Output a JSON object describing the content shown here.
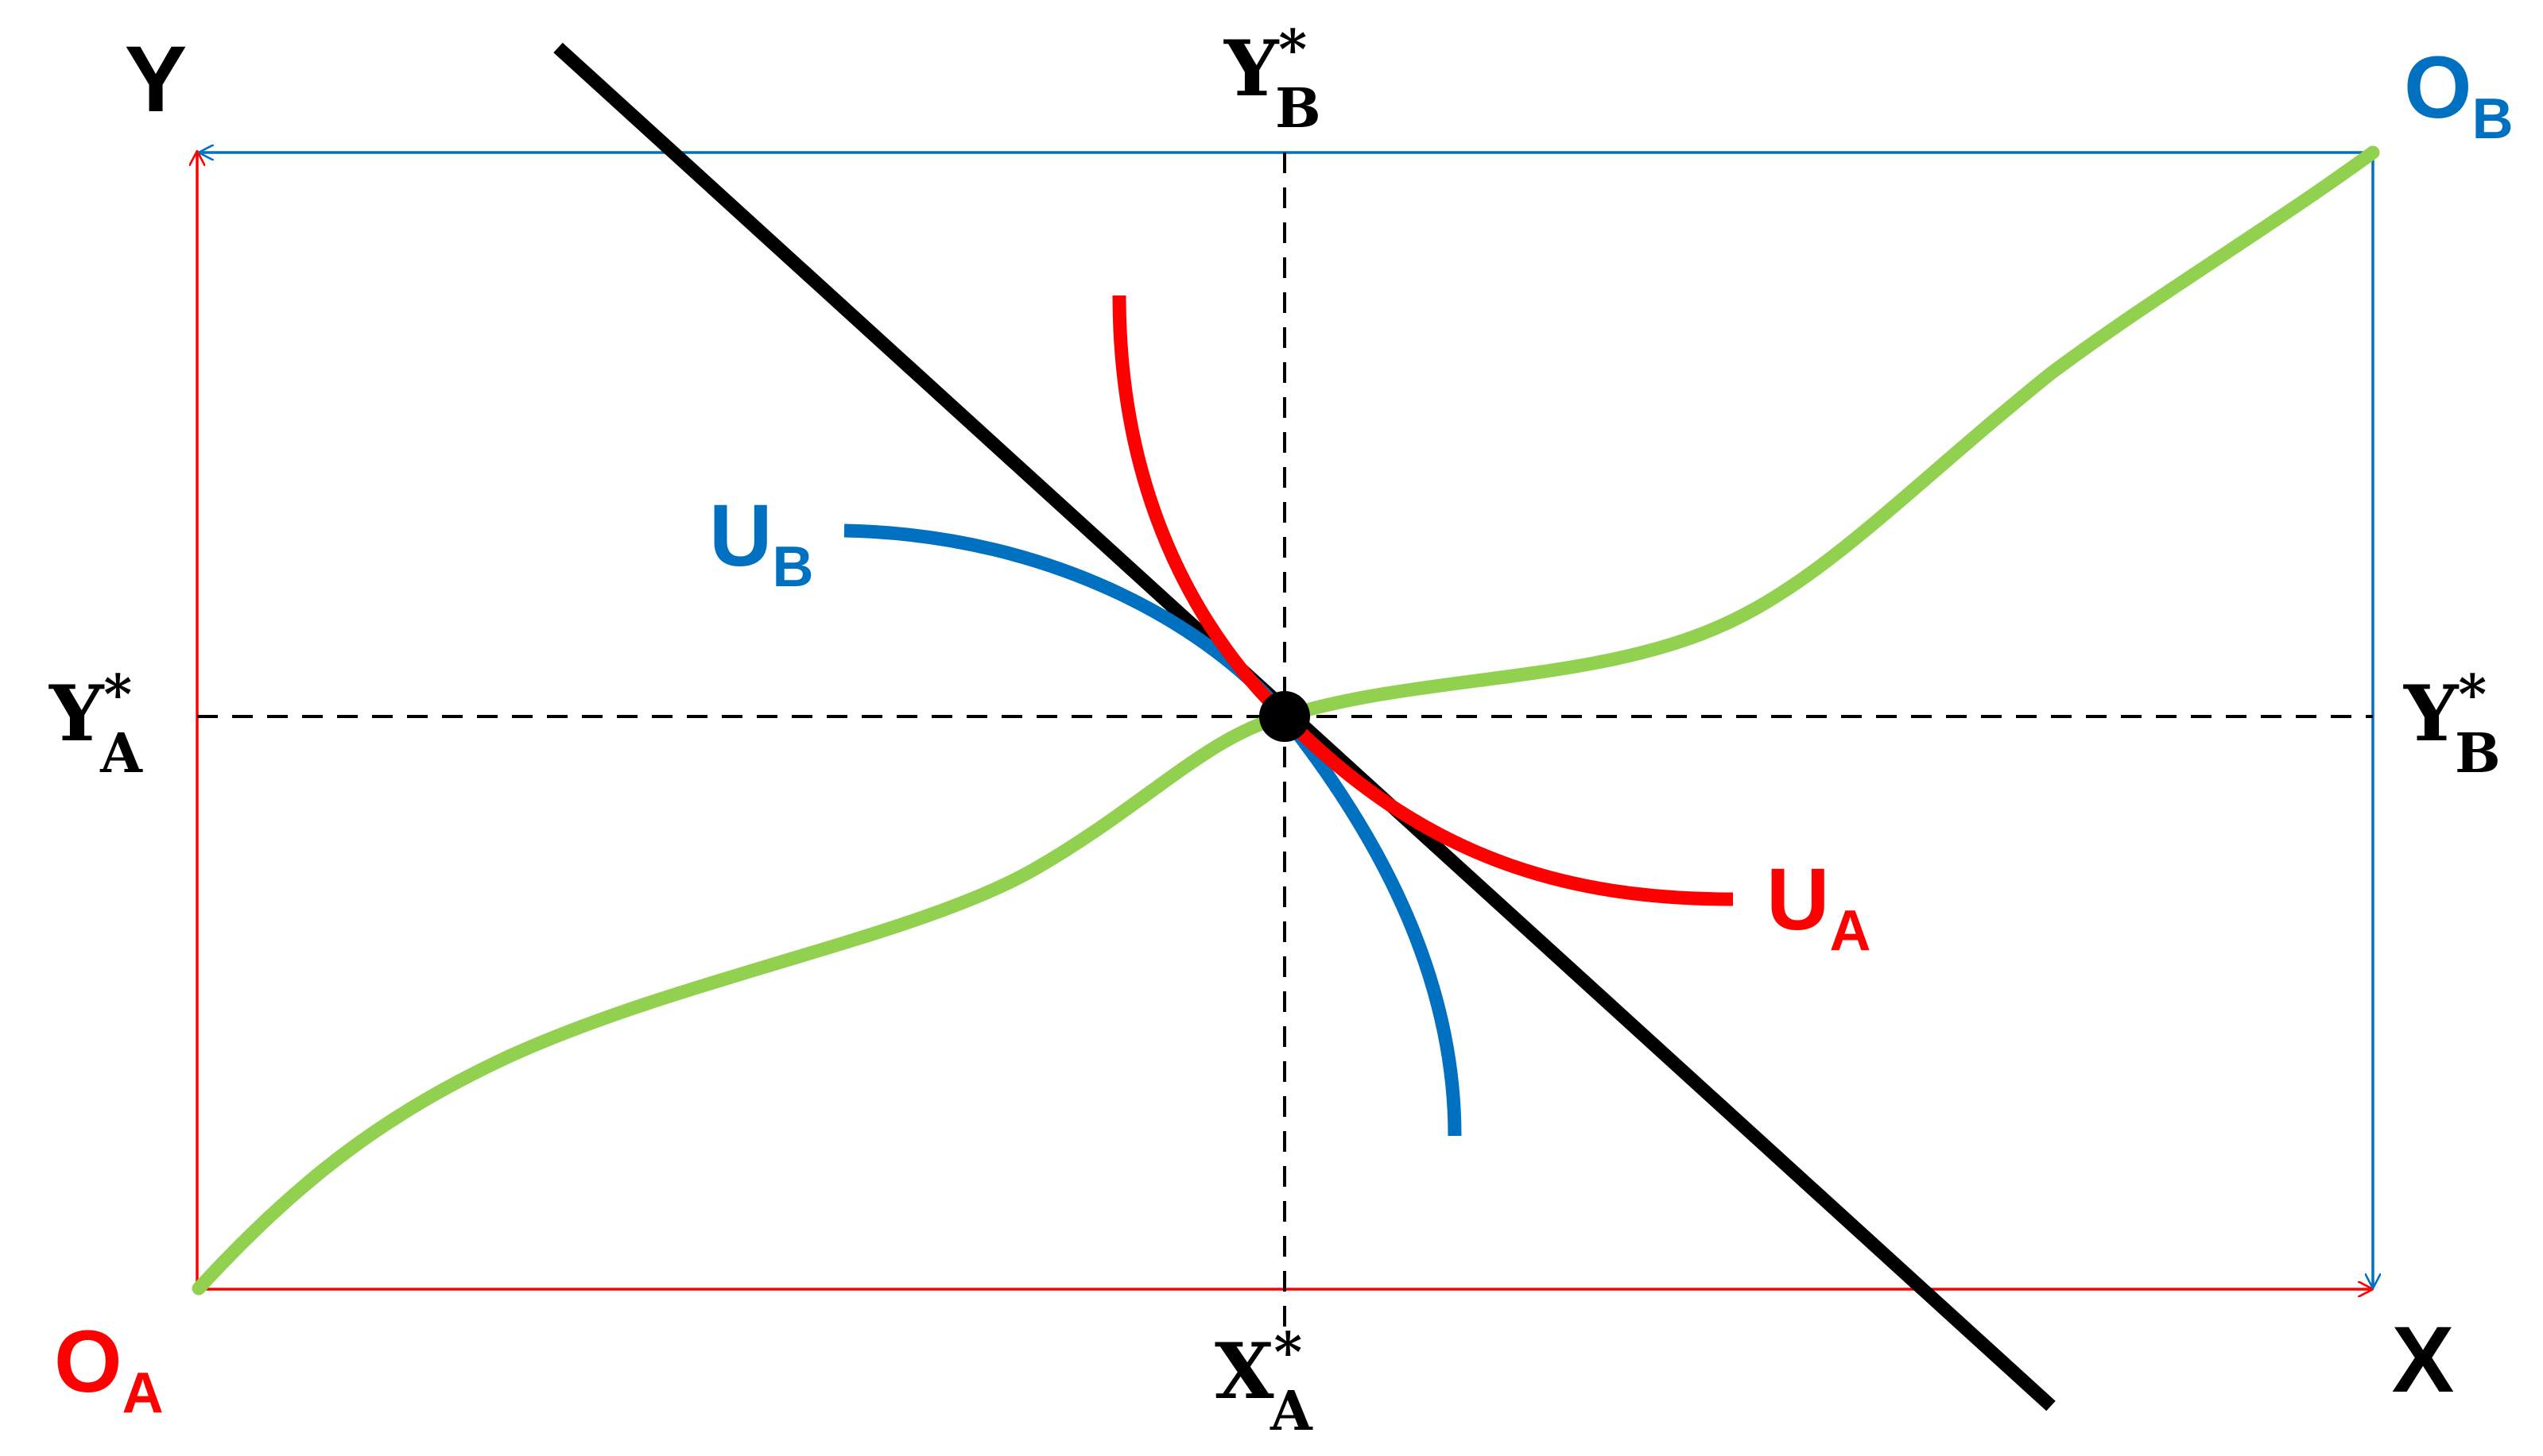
{
  "colors": {
    "person_a": "#ff0000",
    "person_b": "#0070c0",
    "contract_curve": "#92d050",
    "budget_line": "#000000",
    "guides": "#000000"
  },
  "axes": {
    "y_label": "Y",
    "x_label": "X"
  },
  "origins": {
    "a": {
      "main": "O",
      "sub": "A"
    },
    "b": {
      "main": "O",
      "sub": "B"
    }
  },
  "equilibrium": {
    "x_a": {
      "main": "X",
      "sub": "A",
      "sup": "*"
    },
    "y_a": {
      "main": "Y",
      "sub": "A",
      "sup": "*"
    },
    "y_b_top": {
      "main": "Y",
      "sub": "B",
      "sup": "*"
    },
    "y_b_right": {
      "main": "Y",
      "sub": "B",
      "sup": "*"
    }
  },
  "curves": {
    "u_a": {
      "main": "U",
      "sub": "A"
    },
    "u_b": {
      "main": "U",
      "sub": "B"
    }
  }
}
